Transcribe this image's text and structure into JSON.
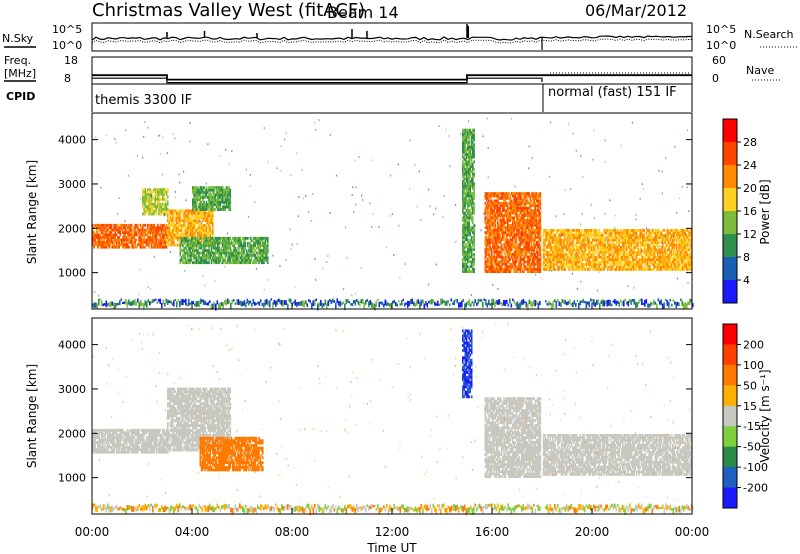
{
  "header": {
    "station": "Christmas Valley West (fitACF)",
    "beam": "Beam 14",
    "date": "06/Mar/2012"
  },
  "noise_panel": {
    "left_label": "N.Sky",
    "right_label": "N.Search",
    "ticks_left": [
      "10^5",
      "10^0"
    ],
    "ticks_right": [
      "10^5",
      "10^0"
    ]
  },
  "freq_panel": {
    "left_label_1": "Freq.",
    "left_label_2": "[MHz]",
    "right_label": "Nave",
    "ticks_left": [
      "18",
      "8"
    ],
    "ticks_right": [
      "60",
      "0"
    ]
  },
  "cpid_panel": {
    "label": "CPID",
    "modes": [
      "themis 3300 IF",
      "normal (fast) 151 IF"
    ]
  },
  "power_panel": {
    "ylabel": "Slant Range [km]",
    "yticks": [
      "1000",
      "2000",
      "3000",
      "4000"
    ],
    "colorbar_label": "Power [dB]",
    "colorbar_ticks": [
      "4",
      "8",
      "12",
      "16",
      "20",
      "24",
      "28"
    ],
    "colors": [
      "#1a1aff",
      "#1a5fb4",
      "#2f8f4f",
      "#7dbd3c",
      "#ffd020",
      "#ff8c00",
      "#ff4500",
      "#ff0000"
    ]
  },
  "velocity_panel": {
    "ylabel": "Slant Range [km]",
    "yticks": [
      "1000",
      "2000",
      "3000",
      "4000"
    ],
    "colorbar_label": "Velocity [m s⁻¹]",
    "colorbar_ticks": [
      "200",
      "100",
      "50",
      "15",
      "-15",
      "-50",
      "-100",
      "-200"
    ],
    "colors": [
      "#1a1aff",
      "#1f5fbf",
      "#2a8a4a",
      "#7fcf3f",
      "#c8c8c0",
      "#ffb000",
      "#ff7a00",
      "#ff4000",
      "#ff0000"
    ]
  },
  "xaxis": {
    "label": "Time UT",
    "ticks": [
      "00:00",
      "04:00",
      "08:00",
      "12:00",
      "16:00",
      "20:00",
      "00:00"
    ]
  },
  "chart_data": {
    "type": "heatmap",
    "title": "Christmas Valley West (fitACF)",
    "subtitle": "Beam 14",
    "date": "06/Mar/2012",
    "xlabel": "Time UT",
    "ylabel": "Slant Range [km]",
    "xlim_hours": [
      0,
      24
    ],
    "ylim_km": [
      180,
      4600
    ],
    "mode_change_hour": 18,
    "freq_mhz": [
      {
        "start_hour": 0,
        "end_hour": 3,
        "value": 12
      },
      {
        "start_hour": 3,
        "end_hour": 15,
        "value": 10
      },
      {
        "start_hour": 15,
        "end_hour": 18,
        "value": 12
      },
      {
        "start_hour": 18,
        "end_hour": 24,
        "value": 12
      }
    ],
    "cpid_modes": [
      {
        "start_hour": 0,
        "end_hour": 18,
        "name": "themis 3300 IF"
      },
      {
        "start_hour": 18,
        "end_hour": 24,
        "name": "normal (fast) 151 IF"
      }
    ],
    "power_regions_db": [
      {
        "t0": 0.0,
        "t1": 3.0,
        "r0": 1550,
        "r1": 2050,
        "power": 24
      },
      {
        "t0": 2.0,
        "t1": 3.0,
        "r0": 2300,
        "r1": 2900,
        "power": 16
      },
      {
        "t0": 3.0,
        "t1": 4.8,
        "r0": 1600,
        "r1": 2400,
        "power": 20
      },
      {
        "t0": 4.0,
        "t1": 5.5,
        "r0": 2400,
        "r1": 2950,
        "power": 12
      },
      {
        "t0": 3.5,
        "t1": 7.0,
        "r0": 1200,
        "r1": 1800,
        "power": 12
      },
      {
        "t0": 14.8,
        "t1": 15.3,
        "r0": 1000,
        "r1": 4200,
        "power": 12
      },
      {
        "t0": 15.7,
        "t1": 18.0,
        "r0": 1000,
        "r1": 2800,
        "power": 24
      },
      {
        "t0": 18.0,
        "t1": 24.0,
        "r0": 1050,
        "r1": 1950,
        "power": 20
      }
    ],
    "velocity_regions_ms": [
      {
        "t0": 0.0,
        "t1": 3.0,
        "r0": 1550,
        "r1": 2050,
        "velocity": 0
      },
      {
        "t0": 3.0,
        "t1": 5.5,
        "r0": 1600,
        "r1": 3000,
        "velocity": 0
      },
      {
        "t0": 4.3,
        "t1": 6.8,
        "r0": 1150,
        "r1": 1900,
        "velocity": -70
      },
      {
        "t0": 14.8,
        "t1": 15.2,
        "r0": 2800,
        "r1": 4300,
        "velocity": 200
      },
      {
        "t0": 15.7,
        "t1": 18.0,
        "r0": 1000,
        "r1": 2800,
        "velocity": 0
      },
      {
        "t0": 18.0,
        "t1": 24.0,
        "r0": 1050,
        "r1": 1950,
        "velocity": 0
      }
    ]
  }
}
